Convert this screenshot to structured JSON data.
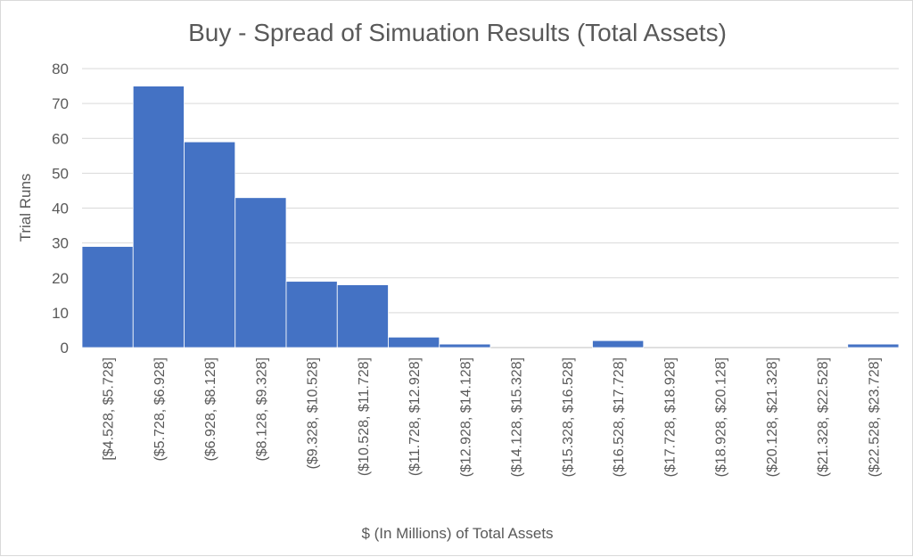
{
  "chart_data": {
    "type": "bar",
    "title": "Buy - Spread of Simuation Results (Total Assets)",
    "xlabel": "$ (In Millions) of Total Assets",
    "ylabel": "Trial Runs",
    "ylim": [
      0,
      80
    ],
    "yticks": [
      0,
      10,
      20,
      30,
      40,
      50,
      60,
      70,
      80
    ],
    "grid": true,
    "legend": "none",
    "bar_color": "#4472C4",
    "categories": [
      "[$4.528, $5.728]",
      "($5.728, $6.928]",
      "($6.928, $8.128]",
      "($8.128, $9.328]",
      "($9.328, $10.528]",
      "($10.528, $11.728]",
      "($11.728, $12.928]",
      "($12.928, $14.128]",
      "($14.128, $15.328]",
      "($15.328, $16.528]",
      "($16.528, $17.728]",
      "($17.728, $18.928]",
      "($18.928, $20.128]",
      "($20.128, $21.328]",
      "($21.328, $22.528]",
      "($22.528, $23.728]"
    ],
    "values": [
      29,
      75,
      59,
      43,
      19,
      18,
      3,
      1,
      0,
      0,
      2,
      0,
      0,
      0,
      0,
      1
    ]
  }
}
